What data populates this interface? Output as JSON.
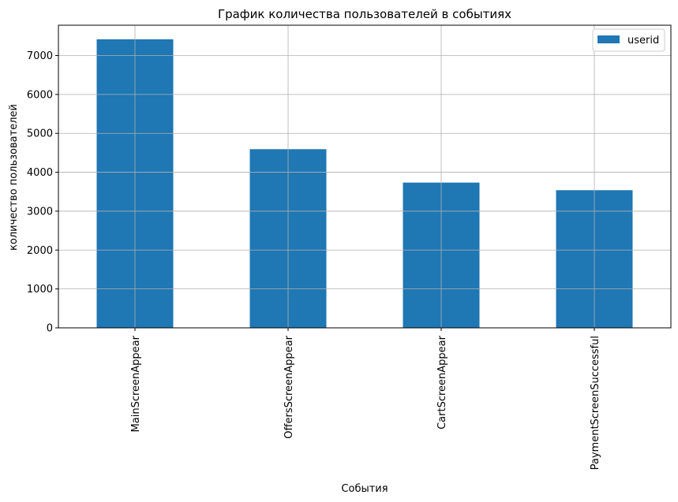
{
  "chart_data": {
    "type": "bar",
    "title": "График количества пользователей в событиях",
    "xlabel": "События",
    "ylabel": "количество пользователей",
    "categories": [
      "MainScreenAppear",
      "OffersScreenAppear",
      "CartScreenAppear",
      "PaymentScreenSuccessful"
    ],
    "series": [
      {
        "name": "userid",
        "values": [
          7419,
          4593,
          3734,
          3539
        ]
      }
    ],
    "ylim": [
      0,
      7780
    ],
    "yticks": [
      0,
      1000,
      2000,
      3000,
      4000,
      5000,
      6000,
      7000
    ],
    "ytick_labels": [
      "0",
      "1000",
      "2000",
      "3000",
      "4000",
      "5000",
      "6000",
      "7000"
    ],
    "grid": true,
    "legend_position": "top-right",
    "colors": {
      "bar": "#1f77b4",
      "grid": "#b0b0b0",
      "axis": "#000000"
    }
  }
}
